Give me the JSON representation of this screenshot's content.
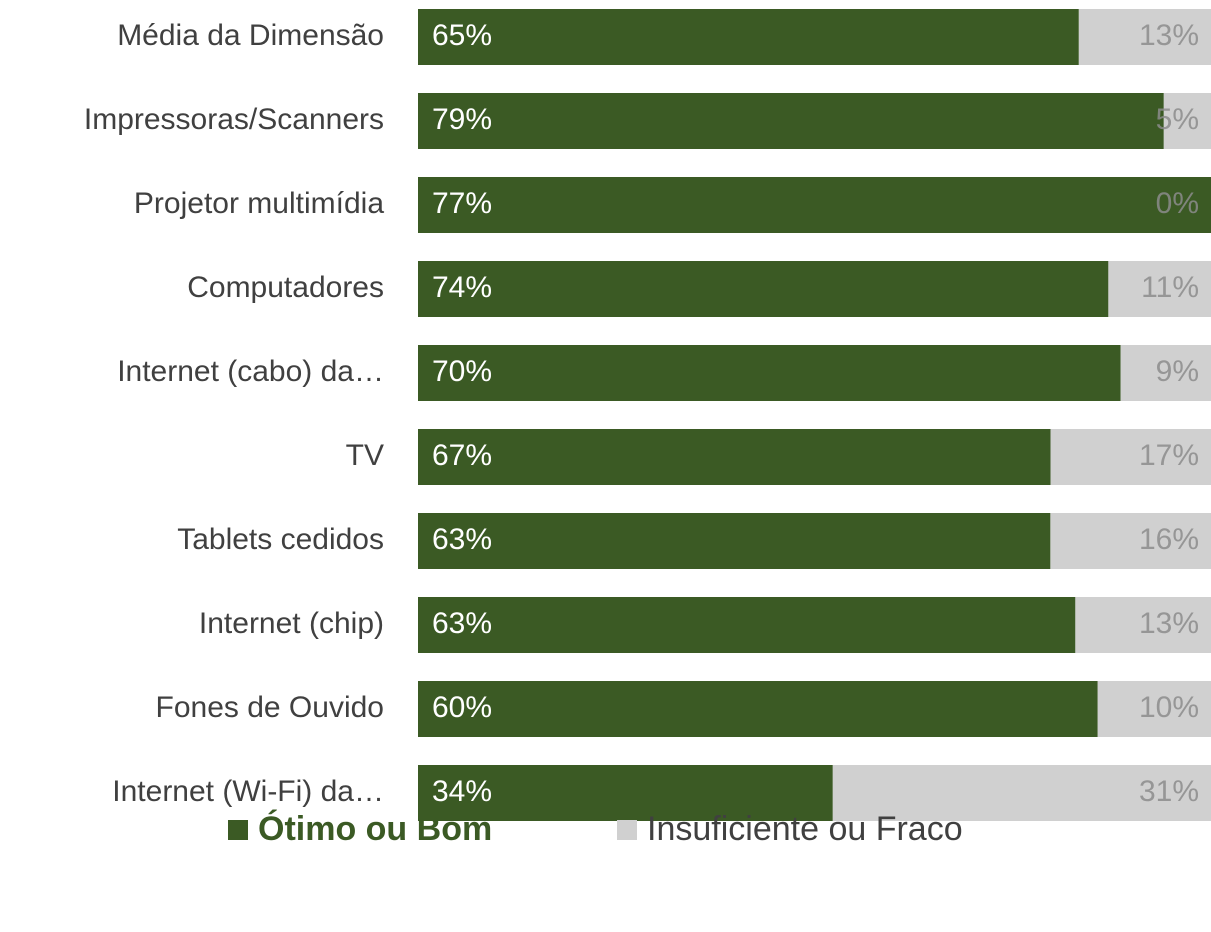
{
  "chart_data": {
    "type": "bar",
    "orientation": "horizontal",
    "stacking": "percent",
    "categories": [
      "Média da Dimensão",
      "Impressoras/Scanners",
      "Projetor multimídia",
      "Computadores",
      "Internet (cabo) da…",
      "TV",
      "Tablets cedidos",
      "Internet (chip)",
      "Fones de Ouvido",
      "Internet (Wi-Fi) da…"
    ],
    "series": [
      {
        "name": "Ótimo ou Bom",
        "color": "#3b5a24",
        "values": [
          65,
          79,
          77,
          74,
          70,
          67,
          63,
          63,
          60,
          34
        ],
        "value_labels": [
          "65%",
          "79%",
          "77%",
          "74%",
          "70%",
          "67%",
          "63%",
          "63%",
          "60%",
          "34%"
        ]
      },
      {
        "name": "Insuficiente ou Fraco",
        "color": "#d0d0d0",
        "values": [
          13,
          5,
          0,
          11,
          9,
          17,
          16,
          13,
          10,
          31
        ],
        "value_labels": [
          "13%",
          "5%",
          "0%",
          "11%",
          "9%",
          "17%",
          "16%",
          "13%",
          "10%",
          "31%"
        ]
      }
    ],
    "legend": "bottom"
  }
}
